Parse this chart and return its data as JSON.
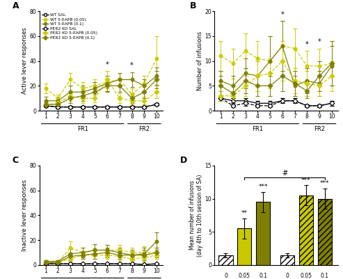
{
  "sessions": [
    1,
    2,
    3,
    4,
    5,
    6,
    7,
    8,
    9,
    10
  ],
  "panel_A": {
    "WT_SAL": {
      "y": [
        4,
        3,
        3,
        3,
        3,
        3,
        3,
        3,
        3,
        5
      ],
      "sem": [
        1,
        1,
        1,
        1,
        1,
        1,
        1,
        1,
        1,
        1
      ]
    },
    "WT_005": {
      "y": [
        18,
        10,
        25,
        18,
        20,
        23,
        25,
        13,
        22,
        42
      ],
      "sem": [
        4,
        3,
        5,
        5,
        5,
        5,
        5,
        5,
        6,
        18
      ]
    },
    "WT_01": {
      "y": [
        8,
        8,
        15,
        15,
        18,
        22,
        25,
        25,
        20,
        28
      ],
      "sem": [
        3,
        3,
        5,
        5,
        5,
        6,
        5,
        6,
        5,
        7
      ]
    },
    "PER2_SAL": {
      "y": [
        4,
        3,
        3,
        3,
        3,
        3,
        3,
        3,
        3,
        5
      ],
      "sem": [
        1,
        1,
        1,
        1,
        1,
        1,
        1,
        1,
        1,
        1
      ]
    },
    "PER2_005": {
      "y": [
        5,
        6,
        12,
        10,
        10,
        25,
        10,
        8,
        8,
        15
      ],
      "sem": [
        2,
        2,
        4,
        4,
        3,
        7,
        4,
        3,
        3,
        5
      ]
    },
    "PER2_01": {
      "y": [
        5,
        5,
        10,
        12,
        15,
        20,
        20,
        10,
        15,
        25
      ],
      "sem": [
        2,
        2,
        4,
        4,
        5,
        5,
        5,
        4,
        5,
        7
      ]
    },
    "star_sessions": [
      6,
      8
    ],
    "ylim": [
      0,
      80
    ],
    "yticks": [
      0,
      20,
      40,
      60,
      80
    ],
    "ylabel": "Active lever responses"
  },
  "panel_B": {
    "WT_SAL": {
      "y": [
        2.5,
        2,
        2,
        1.5,
        1.5,
        2,
        2,
        1,
        1,
        1.5
      ],
      "sem": [
        0.5,
        0.5,
        0.5,
        0.5,
        0.5,
        0.5,
        0.5,
        0.3,
        0.3,
        0.5
      ]
    },
    "WT_005": {
      "y": [
        11,
        9.5,
        12,
        10.5,
        10,
        13,
        12.5,
        9,
        9,
        9.5
      ],
      "sem": [
        3,
        3,
        3.5,
        3.5,
        5,
        5,
        4,
        3,
        3.5,
        4.5
      ]
    },
    "WT_01": {
      "y": [
        6,
        5,
        7.5,
        7,
        10,
        13,
        5,
        6,
        5.5,
        9
      ],
      "sem": [
        2,
        2,
        3,
        3,
        5,
        5,
        2,
        2.5,
        2.5,
        4
      ]
    },
    "PER2_SAL": {
      "y": [
        2.5,
        1,
        1.5,
        1,
        1,
        2,
        2,
        1,
        1,
        1.5
      ],
      "sem": [
        0.5,
        0.3,
        0.5,
        0.3,
        0.3,
        0.5,
        0.5,
        0.3,
        0.3,
        0.5
      ]
    },
    "PER2_005": {
      "y": [
        3,
        3,
        5,
        7,
        7.5,
        10,
        6,
        5.5,
        5,
        7
      ],
      "sem": [
        1,
        1,
        2,
        3,
        3,
        4,
        2.5,
        2.5,
        2,
        3
      ]
    },
    "PER2_01": {
      "y": [
        5,
        3.5,
        6,
        5,
        5,
        7,
        5.5,
        4,
        7,
        9.5
      ],
      "sem": [
        2,
        1.5,
        2.5,
        2,
        2,
        3,
        2.5,
        1.5,
        3,
        4.5
      ]
    },
    "star_sessions": [
      6,
      8,
      9
    ],
    "ylim": [
      0,
      20
    ],
    "yticks": [
      0,
      5,
      10,
      15,
      20
    ],
    "ylabel": "Number of infusions"
  },
  "panel_C": {
    "WT_SAL": {
      "y": [
        1,
        1,
        1,
        1,
        1,
        1,
        1,
        1,
        0.5,
        1
      ],
      "sem": [
        0.5,
        0.5,
        0.5,
        0.5,
        0.5,
        0.5,
        0.5,
        0.3,
        0.3,
        0.3
      ]
    },
    "WT_005": {
      "y": [
        3,
        2,
        14,
        10,
        12,
        12,
        12,
        10,
        10,
        10
      ],
      "sem": [
        1,
        1,
        5,
        4,
        5,
        4,
        4,
        4,
        5,
        4
      ]
    },
    "WT_01": {
      "y": [
        3,
        3,
        9,
        10,
        12,
        12,
        10,
        8,
        9,
        19
      ],
      "sem": [
        1,
        1,
        4,
        4,
        5,
        4,
        4,
        4,
        5,
        7
      ]
    },
    "PER2_SAL": {
      "y": [
        1,
        1,
        1,
        1,
        1,
        1,
        1,
        1,
        0.5,
        1
      ],
      "sem": [
        0.5,
        0.5,
        0.5,
        0.5,
        0.5,
        0.5,
        0.5,
        0.3,
        0.3,
        0.3
      ]
    },
    "PER2_005": {
      "y": [
        2,
        2,
        5,
        8,
        8,
        8,
        7,
        5,
        6,
        8
      ],
      "sem": [
        1,
        1,
        2,
        3,
        3,
        3,
        3,
        2,
        3,
        3
      ]
    },
    "PER2_01": {
      "y": [
        2,
        2,
        7,
        8,
        9,
        10,
        8,
        8,
        8,
        10
      ],
      "sem": [
        1,
        1,
        3,
        3,
        4,
        4,
        3,
        3,
        4,
        4
      ]
    },
    "ylim": [
      0,
      80
    ],
    "yticks": [
      0,
      20,
      40,
      60,
      80
    ],
    "ylabel": "Inactive lever responses"
  },
  "panel_D": {
    "doses": [
      "0",
      "0.05",
      "0.1",
      "0",
      "0.05",
      "0.1"
    ],
    "values": [
      1.5,
      5.5,
      9.5,
      1.5,
      10.5,
      10.0
    ],
    "sems": [
      0.3,
      1.5,
      1.5,
      0.3,
      1.5,
      1.5
    ],
    "colors": [
      "#FFFFFF",
      "#c8c800",
      "#808000",
      "#FFFFFF",
      "#c8c800",
      "#808000"
    ],
    "hatches": [
      "////",
      "",
      "",
      "////",
      "////",
      "////"
    ],
    "stars": [
      "",
      "**",
      "***",
      "",
      "***",
      "***"
    ],
    "ylim": [
      0,
      15
    ],
    "yticks": [
      0,
      5,
      10,
      15
    ],
    "ylabel": "Mean number of infusions\n(day 4th to 10th session of SA)"
  },
  "colors": {
    "WT_SAL": "#000000",
    "WT_005": "#cccc00",
    "WT_01": "#808000",
    "PER2_SAL": "#000000",
    "PER2_005": "#cccc00",
    "PER2_01": "#808000"
  }
}
